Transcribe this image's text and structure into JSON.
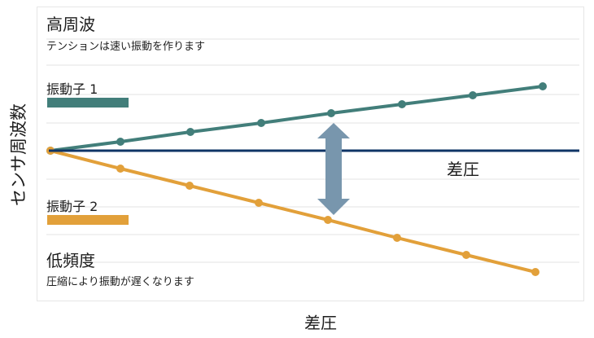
{
  "header": {
    "title": "高周波",
    "subtitle": "テンションは速い振動を作ります"
  },
  "footer": {
    "title": "低頻度",
    "subtitle": "圧縮により振動が遅くなります"
  },
  "legend": {
    "vibrator1": "振動子 1",
    "vibrator2": "振動子 2"
  },
  "axes": {
    "y_title": "センサ周波数",
    "x_title": "差圧",
    "baseline_label": "差圧"
  },
  "colors": {
    "vibrator1": "#427e7a",
    "vibrator2": "#e2a03a",
    "baseline": "#0f3466",
    "arrow": "#7896ad",
    "gridline": "#e3e3e3"
  },
  "icons": {
    "double_arrow": "vertical-double-arrow-icon"
  }
}
